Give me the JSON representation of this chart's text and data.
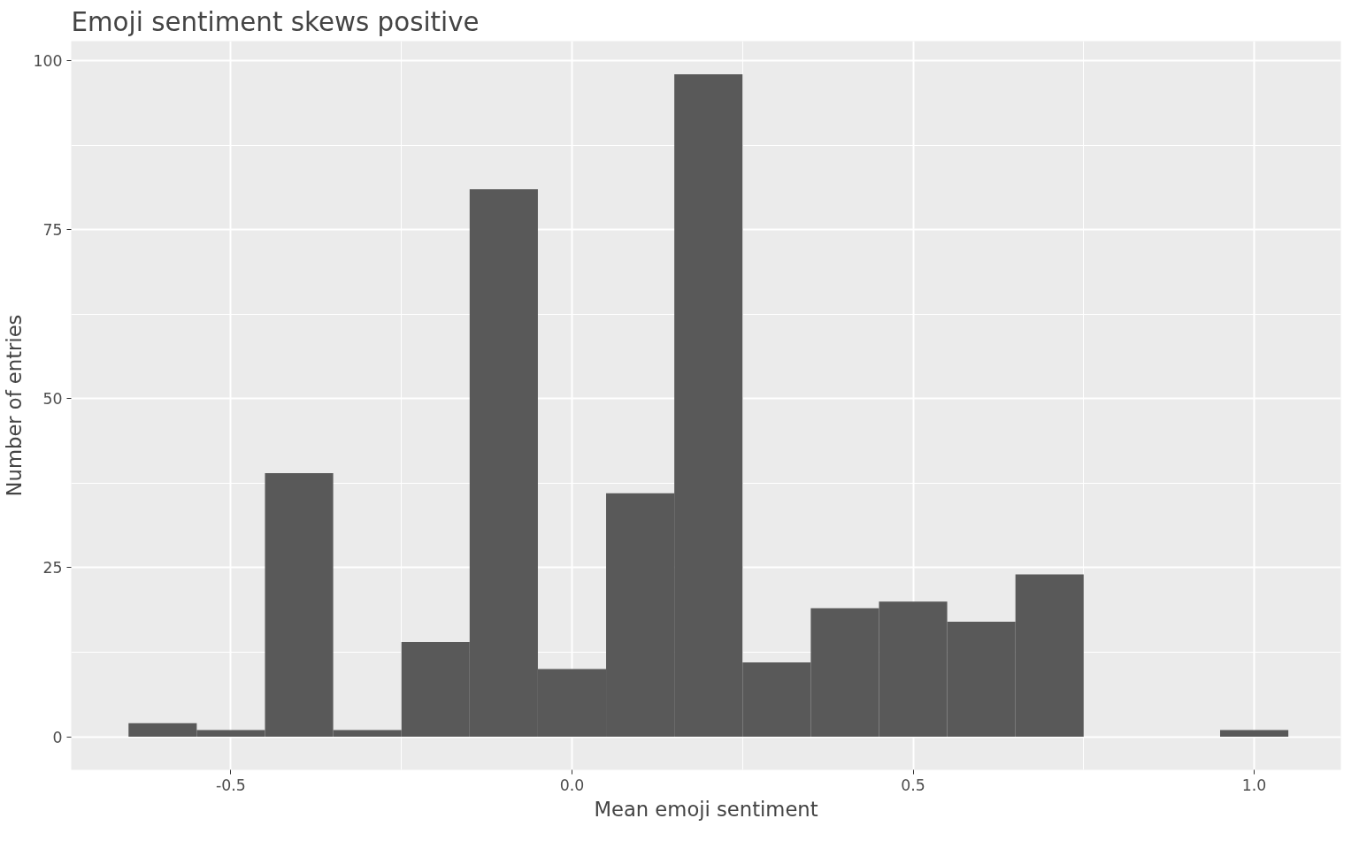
{
  "chart_data": {
    "type": "histogram",
    "title": "Emoji sentiment skews positive",
    "xlabel": "Mean emoji sentiment",
    "ylabel": "Number of entries",
    "bins": [
      -0.65,
      -0.55,
      -0.45,
      -0.35,
      -0.25,
      -0.15,
      -0.05,
      0.05,
      0.15,
      0.25,
      0.35,
      0.45,
      0.55,
      0.65,
      0.75,
      0.85,
      0.95,
      1.05
    ],
    "values": [
      2,
      1,
      39,
      1,
      14,
      81,
      10,
      36,
      98,
      11,
      19,
      20,
      17,
      24,
      0,
      0,
      1
    ],
    "color": "#595959",
    "xlim": [
      -0.734,
      1.127
    ],
    "ylim": [
      -4.9,
      102.9
    ],
    "xticks": [
      {
        "value": -0.5,
        "label": "-0.5"
      },
      {
        "value": 0,
        "label": "0.0"
      },
      {
        "value": 0.5,
        "label": "0.5"
      },
      {
        "value": 1,
        "label": "1.0"
      }
    ],
    "yticks": [
      0,
      25,
      50,
      75,
      100
    ],
    "grid": true
  }
}
